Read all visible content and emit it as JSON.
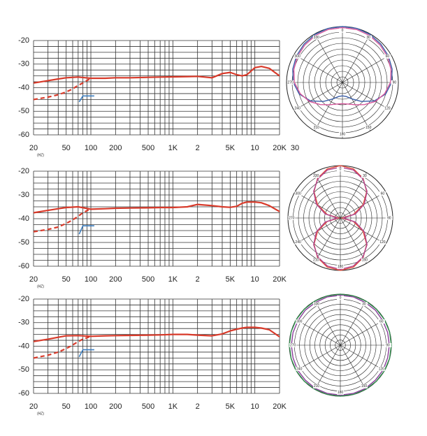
{
  "chart_data": [
    {
      "type": "line",
      "xscale": "log",
      "xlim": [
        20,
        20000
      ],
      "ylim": [
        -60,
        -20
      ],
      "yticks": [
        -20,
        -30,
        -40,
        -50,
        -60
      ],
      "xticks": [
        20,
        50,
        100,
        200,
        500,
        {
          "value": 1000,
          "label": "1K"
        },
        {
          "value": 2000,
          "label": "2"
        },
        {
          "value": 5000,
          "label": "5K"
        },
        {
          "value": 10000,
          "label": "10"
        },
        {
          "value": 20000,
          "label": "20K"
        }
      ],
      "unit": "(HZ)",
      "extra_label": "30",
      "xgrid": [
        20,
        30,
        40,
        50,
        60,
        70,
        80,
        90,
        100,
        200,
        300,
        400,
        500,
        600,
        700,
        800,
        900,
        1000,
        2000,
        3000,
        4000,
        5000,
        6000,
        7000,
        8000,
        9000,
        10000,
        20000
      ],
      "ygrid": [
        -20,
        -22.5,
        -25,
        -27.5,
        -30,
        -32.5,
        -35,
        -37.5,
        -40,
        -42.5,
        -45,
        -47.5,
        -50,
        -52.5,
        -55,
        -57.5,
        -60
      ],
      "series": [
        {
          "color": "#d83a2a",
          "x": [
            20,
            30,
            40,
            50,
            70,
            100,
            150,
            200,
            300,
            500,
            700,
            1000,
            1500,
            2000,
            3000,
            4000,
            5000,
            6000,
            7000,
            8000,
            10000,
            12000,
            15000,
            20000
          ],
          "values": [
            -38,
            -37,
            -36.3,
            -35.8,
            -35.5,
            -36,
            -36,
            -35.8,
            -35.8,
            -35.6,
            -35.5,
            -35.4,
            -35.3,
            -35.2,
            -35.8,
            -34,
            -33.5,
            -34.5,
            -35,
            -34.5,
            -31.5,
            -31,
            -31.8,
            -35
          ]
        },
        {
          "color": "#d83a2a",
          "dashed": true,
          "x": [
            20,
            30,
            40,
            50,
            60,
            70,
            80,
            100
          ],
          "values": [
            -45,
            -44,
            -43,
            -41.8,
            -40.5,
            -39,
            -38,
            -36
          ]
        },
        {
          "color": "#3d7fc1",
          "x": [
            72,
            80,
            110
          ],
          "values": [
            -46,
            -43.5,
            -43.5
          ]
        }
      ]
    },
    {
      "type": "polar",
      "rlim": [
        0,
        1
      ],
      "rgrid": [
        0.1,
        0.2,
        0.3,
        0.4,
        0.5,
        0.6,
        0.7,
        0.8,
        0.9,
        1.0
      ],
      "angles": [
        0,
        30,
        60,
        90,
        120,
        150,
        180,
        210,
        240,
        270,
        300,
        330
      ],
      "theta": [
        0,
        15,
        30,
        45,
        60,
        75,
        90,
        105,
        120,
        135,
        150,
        165,
        180,
        195,
        210,
        225,
        240,
        255,
        270,
        285,
        300,
        315,
        330,
        345
      ],
      "series": [
        {
          "color": "#3b5ea8",
          "values": [
            1,
            1,
            0.99,
            0.97,
            0.95,
            0.92,
            0.88,
            0.8,
            0.66,
            0.48,
            0.34,
            0.26,
            0.24,
            0.26,
            0.34,
            0.48,
            0.66,
            0.8,
            0.88,
            0.92,
            0.95,
            0.97,
            0.99,
            1
          ]
        },
        {
          "color": "#d6579a",
          "values": [
            0.98,
            0.98,
            0.97,
            0.95,
            0.93,
            0.9,
            0.86,
            0.78,
            0.68,
            0.56,
            0.46,
            0.4,
            0.38,
            0.4,
            0.46,
            0.56,
            0.68,
            0.78,
            0.86,
            0.9,
            0.93,
            0.95,
            0.97,
            0.98
          ]
        }
      ]
    },
    {
      "type": "line",
      "xscale": "log",
      "xlim": [
        20,
        20000
      ],
      "ylim": [
        -60,
        -20
      ],
      "yticks": [
        -20,
        -30,
        -40,
        -50,
        -60
      ],
      "xticks": [
        20,
        50,
        100,
        200,
        500,
        {
          "value": 1000,
          "label": "1K"
        },
        {
          "value": 2000,
          "label": "2"
        },
        {
          "value": 5000,
          "label": "5K"
        },
        {
          "value": 10000,
          "label": "10"
        },
        {
          "value": 20000,
          "label": "20K"
        }
      ],
      "unit": "(HZ)",
      "xgrid": [
        20,
        30,
        40,
        50,
        60,
        70,
        80,
        90,
        100,
        200,
        300,
        400,
        500,
        600,
        700,
        800,
        900,
        1000,
        2000,
        3000,
        4000,
        5000,
        6000,
        7000,
        8000,
        9000,
        10000,
        20000
      ],
      "ygrid": [
        -20,
        -22.5,
        -25,
        -27.5,
        -30,
        -32.5,
        -35,
        -37.5,
        -40,
        -42.5,
        -45,
        -47.5,
        -50,
        -52.5,
        -55,
        -57.5,
        -60
      ],
      "series": [
        {
          "color": "#d83a2a",
          "x": [
            20,
            30,
            40,
            50,
            70,
            100,
            150,
            200,
            300,
            500,
            700,
            1000,
            1500,
            2000,
            3000,
            4000,
            5000,
            6000,
            7000,
            8000,
            10000,
            12000,
            15000,
            20000
          ],
          "values": [
            -37.5,
            -36.5,
            -35.8,
            -35.3,
            -35,
            -36,
            -35.8,
            -35.6,
            -35.5,
            -35.4,
            -35.3,
            -35.3,
            -35,
            -34,
            -34.5,
            -35,
            -35.2,
            -34.8,
            -33.5,
            -33,
            -33,
            -33.3,
            -34.5,
            -37
          ]
        },
        {
          "color": "#d83a2a",
          "dashed": true,
          "x": [
            20,
            30,
            40,
            50,
            60,
            70,
            80,
            100
          ],
          "values": [
            -45.5,
            -44.5,
            -43.5,
            -42,
            -40.5,
            -39,
            -37.5,
            -35.8
          ]
        },
        {
          "color": "#3d7fc1",
          "x": [
            72,
            80,
            110
          ],
          "values": [
            -46.5,
            -43,
            -43
          ]
        }
      ]
    },
    {
      "type": "polar",
      "rlim": [
        0,
        1
      ],
      "rgrid": [
        0.1,
        0.2,
        0.3,
        0.4,
        0.5,
        0.6,
        0.7,
        0.8,
        0.9,
        1.0
      ],
      "angles": [
        0,
        30,
        60,
        90,
        120,
        150,
        180,
        210,
        240,
        270,
        300,
        330
      ],
      "theta": [
        0,
        15,
        30,
        45,
        60,
        75,
        90,
        105,
        120,
        135,
        150,
        165,
        180,
        195,
        210,
        225,
        240,
        255,
        270,
        285,
        300,
        315,
        330,
        345
      ],
      "series": [
        {
          "color": "#e04a3a",
          "values": [
            1,
            0.97,
            0.87,
            0.71,
            0.5,
            0.26,
            0.03,
            0.26,
            0.5,
            0.71,
            0.87,
            0.97,
            1,
            0.97,
            0.87,
            0.71,
            0.5,
            0.26,
            0.03,
            0.26,
            0.5,
            0.71,
            0.87,
            0.97
          ]
        },
        {
          "color": "#b0458f",
          "values": [
            0.97,
            0.95,
            0.86,
            0.72,
            0.53,
            0.3,
            0.06,
            0.3,
            0.53,
            0.72,
            0.86,
            0.95,
            0.98,
            0.95,
            0.86,
            0.72,
            0.53,
            0.3,
            0.06,
            0.3,
            0.53,
            0.72,
            0.86,
            0.95
          ]
        }
      ]
    },
    {
      "type": "line",
      "xscale": "log",
      "xlim": [
        20,
        20000
      ],
      "ylim": [
        -60,
        -20
      ],
      "yticks": [
        -20,
        -30,
        -40,
        -50,
        -60
      ],
      "xticks": [
        20,
        50,
        100,
        200,
        500,
        {
          "value": 1000,
          "label": "1K"
        },
        {
          "value": 2000,
          "label": "2"
        },
        {
          "value": 5000,
          "label": "5K"
        },
        {
          "value": 10000,
          "label": "10"
        },
        {
          "value": 20000,
          "label": "20K"
        }
      ],
      "unit": "(HZ)",
      "xgrid": [
        20,
        30,
        40,
        50,
        60,
        70,
        80,
        90,
        100,
        200,
        300,
        400,
        500,
        600,
        700,
        800,
        900,
        1000,
        2000,
        3000,
        4000,
        5000,
        6000,
        7000,
        8000,
        9000,
        10000,
        20000
      ],
      "ygrid": [
        -20,
        -22.5,
        -25,
        -27.5,
        -30,
        -32.5,
        -35,
        -37.5,
        -40,
        -42.5,
        -45,
        -47.5,
        -50,
        -52.5,
        -55,
        -57.5,
        -60
      ],
      "series": [
        {
          "color": "#d83a2a",
          "x": [
            20,
            30,
            40,
            50,
            70,
            100,
            150,
            200,
            300,
            500,
            700,
            1000,
            1500,
            2000,
            3000,
            4000,
            5000,
            6000,
            7000,
            8000,
            10000,
            12000,
            15000,
            20000
          ],
          "values": [
            -38,
            -37,
            -36.2,
            -35.6,
            -35.5,
            -35.8,
            -35.6,
            -35.5,
            -35.4,
            -35.3,
            -35.2,
            -35,
            -35,
            -35.3,
            -35.6,
            -34.8,
            -33.5,
            -32.8,
            -32.3,
            -32,
            -32,
            -32.3,
            -33,
            -36
          ]
        },
        {
          "color": "#d83a2a",
          "dashed": true,
          "x": [
            20,
            30,
            40,
            50,
            60,
            70,
            80,
            100
          ],
          "values": [
            -45,
            -43.8,
            -42.5,
            -41,
            -39.5,
            -38,
            -37,
            -35.8
          ]
        },
        {
          "color": "#3d7fc1",
          "x": [
            72,
            80,
            110
          ],
          "values": [
            -44.5,
            -41.5,
            -41.5
          ]
        }
      ]
    },
    {
      "type": "polar",
      "rlim": [
        0,
        1
      ],
      "rgrid": [
        0.1,
        0.2,
        0.3,
        0.4,
        0.5,
        0.6,
        0.7,
        0.8,
        0.9,
        1.0
      ],
      "angles": [
        0,
        30,
        60,
        90,
        120,
        150,
        180,
        210,
        240,
        270,
        300,
        330
      ],
      "theta": [
        0,
        15,
        30,
        45,
        60,
        75,
        90,
        105,
        120,
        135,
        150,
        165,
        180,
        195,
        210,
        225,
        240,
        255,
        270,
        285,
        300,
        315,
        330,
        345
      ],
      "series": [
        {
          "color": "#2f8a4a",
          "values": [
            1,
            1,
            1,
            1,
            1,
            1,
            1,
            1,
            1,
            1,
            1,
            1,
            1,
            1,
            1,
            1,
            1,
            1,
            1,
            1,
            1,
            1,
            1,
            1
          ]
        },
        {
          "color": "#8a3e9a",
          "values": [
            0.98,
            0.98,
            0.97,
            0.97,
            0.96,
            0.96,
            0.96,
            0.96,
            0.97,
            0.97,
            0.98,
            0.98,
            0.98,
            0.98,
            0.98,
            0.97,
            0.97,
            0.96,
            0.96,
            0.96,
            0.96,
            0.97,
            0.97,
            0.98
          ]
        }
      ]
    }
  ]
}
